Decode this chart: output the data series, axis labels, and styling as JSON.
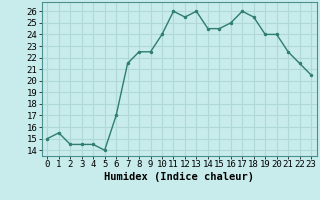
{
  "x": [
    0,
    1,
    2,
    3,
    4,
    5,
    6,
    7,
    8,
    9,
    10,
    11,
    12,
    13,
    14,
    15,
    16,
    17,
    18,
    19,
    20,
    21,
    22,
    23
  ],
  "y": [
    15,
    15.5,
    14.5,
    14.5,
    14.5,
    14,
    17,
    21.5,
    22.5,
    22.5,
    24,
    26,
    25.5,
    26,
    24.5,
    24.5,
    25,
    26,
    25.5,
    24,
    24,
    22.5,
    21.5,
    20.5
  ],
  "line_color": "#2e7d6e",
  "marker_color": "#2e7d6e",
  "bg_color": "#c8ecec",
  "grid_color": "#b0d8d8",
  "xlabel": "Humidex (Indice chaleur)",
  "xlabel_fontsize": 7.5,
  "ylabel_ticks": [
    14,
    15,
    16,
    17,
    18,
    19,
    20,
    21,
    22,
    23,
    24,
    25,
    26
  ],
  "ylim": [
    13.5,
    26.8
  ],
  "xlim": [
    -0.5,
    23.5
  ],
  "tick_fontsize": 6.5
}
